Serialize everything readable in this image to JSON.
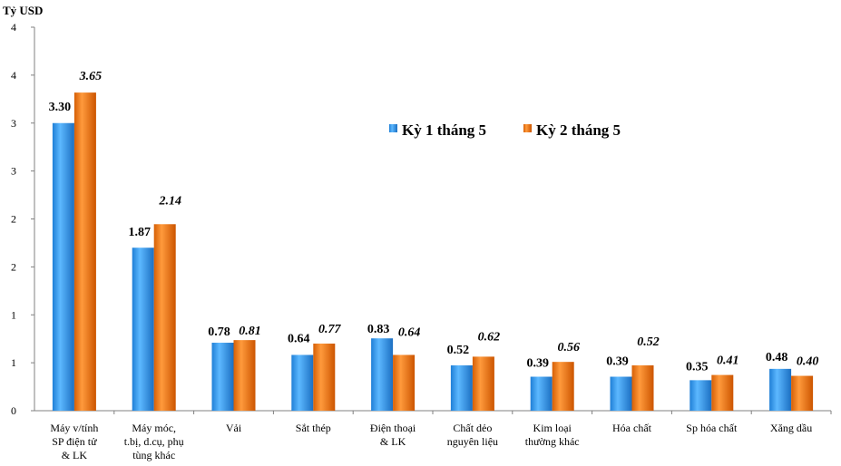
{
  "chart_data": {
    "type": "bar",
    "unit_label": "Tỷ USD",
    "y_tick_labels": [
      "0",
      "1",
      "1",
      "2",
      "2",
      "3",
      "3",
      "4",
      "4"
    ],
    "ylim": [
      0,
      4.4
    ],
    "categories": [
      [
        "Máy v/tính",
        "SP điện tử",
        "& LK"
      ],
      [
        "Máy móc,",
        "t.bị, d.cụ, phụ",
        "tùng khác"
      ],
      [
        "Vải"
      ],
      [
        "Sắt thép"
      ],
      [
        "Điện thoại",
        "& LK"
      ],
      [
        "Chất dẻo",
        "nguyên liệu"
      ],
      [
        "Kim loại",
        "thường khác"
      ],
      [
        "Hóa chất"
      ],
      [
        "Sp hóa chất"
      ],
      [
        "Xăng dầu"
      ]
    ],
    "series": [
      {
        "name": "Kỳ 1 tháng 5",
        "color": "#3399ee",
        "values": [
          3.3,
          1.87,
          0.78,
          0.64,
          0.83,
          0.52,
          0.39,
          0.39,
          0.35,
          0.48
        ],
        "labels": [
          "3.30",
          "1.87",
          "0.78",
          "0.64",
          "0.83",
          "0.52",
          "0.39",
          "0.39",
          "0.35",
          "0.48"
        ]
      },
      {
        "name": "Kỳ 2 tháng 5",
        "color": "#f07a1a",
        "values": [
          3.65,
          2.14,
          0.81,
          0.77,
          0.64,
          0.62,
          0.56,
          0.52,
          0.41,
          0.4
        ],
        "labels": [
          "3.65",
          "2.14",
          "0.81",
          "0.77",
          "0.64",
          "0.62",
          "0.56",
          "0.52",
          "0.41",
          "0.40"
        ]
      }
    ],
    "legend_position": "upper-right",
    "grid": false
  }
}
